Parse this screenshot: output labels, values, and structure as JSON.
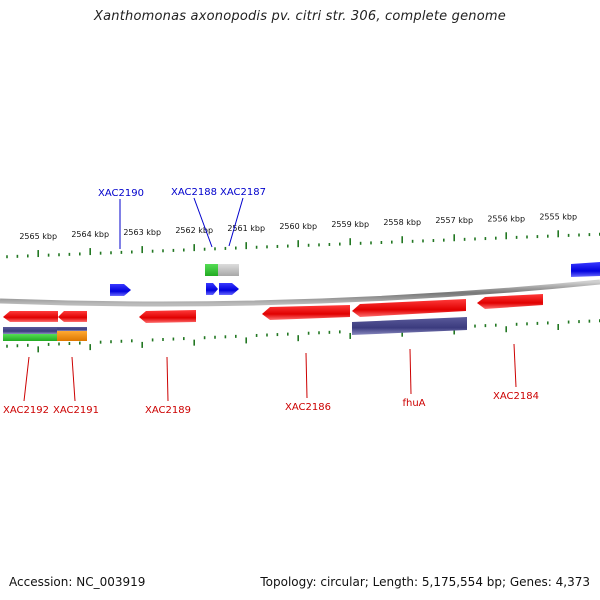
{
  "title": "Xanthomonas axonopodis pv. citri str. 306, complete genome",
  "footer": {
    "accession": "Accession: NC_003919",
    "stats": "Topology: circular; Length: 5,175,554 bp; Genes: 4,373"
  },
  "colors": {
    "forward_gene": "#0000ee",
    "reverse_gene": "#ee0000",
    "scale": "#227722",
    "backbone": "#888888",
    "rna_green": "#33cc33",
    "rna_gray": "#bbbbbb",
    "feature_purple": "#444488",
    "feature_orange": "#ee8800"
  },
  "scale_ticks": [
    {
      "label": "2565 kbp"
    },
    {
      "label": "2564 kbp"
    },
    {
      "label": "2563 kbp"
    },
    {
      "label": "2562 kbp"
    },
    {
      "label": "2561 kbp"
    },
    {
      "label": "2560 kbp"
    },
    {
      "label": "2559 kbp"
    },
    {
      "label": "2558 kbp"
    },
    {
      "label": "2557 kbp"
    },
    {
      "label": "2556 kbp"
    },
    {
      "label": "2555 kbp"
    }
  ],
  "gene_labels": [
    {
      "name": "XAC2190",
      "strand": "forward"
    },
    {
      "name": "XAC2188",
      "strand": "forward"
    },
    {
      "name": "XAC2187",
      "strand": "forward"
    },
    {
      "name": "XAC2192",
      "strand": "reverse"
    },
    {
      "name": "XAC2191",
      "strand": "reverse"
    },
    {
      "name": "XAC2189",
      "strand": "reverse"
    },
    {
      "name": "XAC2186",
      "strand": "reverse"
    },
    {
      "name": "fhuA",
      "strand": "reverse"
    },
    {
      "name": "XAC2184",
      "strand": "reverse"
    }
  ]
}
